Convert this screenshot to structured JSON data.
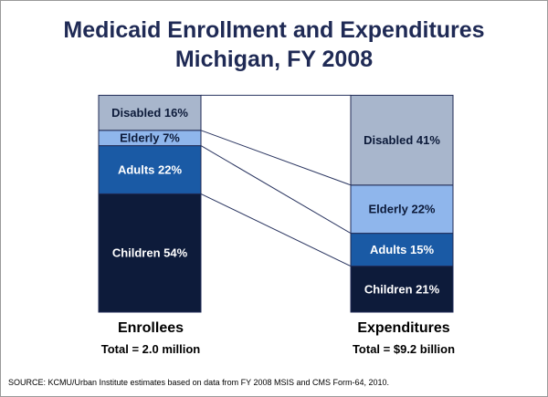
{
  "title_line1": "Medicaid Enrollment and Expenditures",
  "title_line2": "Michigan, FY 2008",
  "source": "SOURCE:  KCMU/Urban Institute estimates based on data from FY 2008 MSIS and CMS Form-64,  2010.",
  "colors": {
    "children": "#0d1b3a",
    "adults": "#1a5aa5",
    "elderly": "#8fb6ec",
    "disabled": "#a8b6cc",
    "text_light": "#ffffff",
    "text_dark": "#0d1b3a",
    "title": "#1f2a55"
  },
  "chart_data": {
    "type": "bar",
    "stacked": true,
    "categories": [
      "Enrollees",
      "Expenditures"
    ],
    "category_totals": [
      "Total = 2.0 million",
      "Total = $9.2 billion"
    ],
    "series": [
      {
        "name": "Children",
        "values": [
          54,
          21
        ],
        "labels": [
          "Children 54%",
          "Children 21%"
        ]
      },
      {
        "name": "Adults",
        "values": [
          22,
          15
        ],
        "labels": [
          "Adults 22%",
          "Adults 15%"
        ]
      },
      {
        "name": "Elderly",
        "values": [
          7,
          22
        ],
        "labels": [
          "Elderly 7%",
          "Elderly 22%"
        ]
      },
      {
        "name": "Disabled",
        "values": [
          16,
          41
        ],
        "labels": [
          "Disabled 16%",
          "Disabled 41%"
        ]
      }
    ],
    "unit": "%",
    "connector_lines": true
  }
}
